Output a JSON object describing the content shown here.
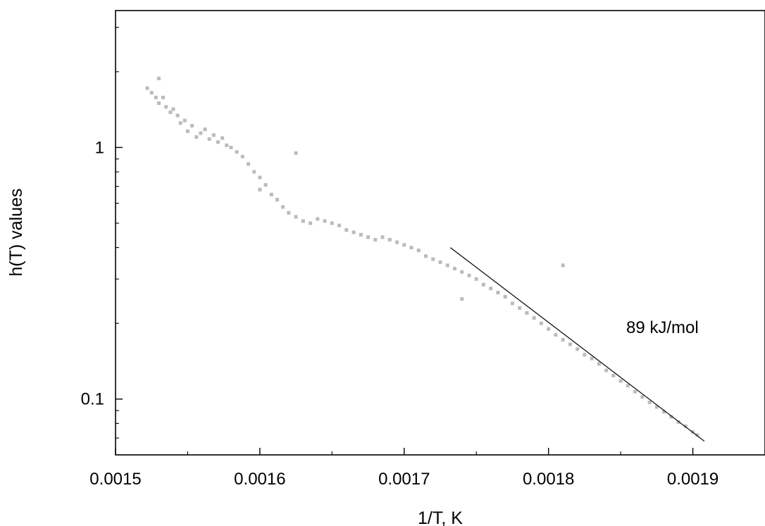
{
  "chart_data": {
    "type": "scatter",
    "title": "",
    "xlabel": "1/T, K",
    "ylabel": "h(T) values",
    "xlim": [
      0.0015,
      0.00195
    ],
    "ylim": [
      0.06,
      3.5
    ],
    "yscale": "log",
    "grid": false,
    "x_ticks": [
      {
        "value": 0.0015,
        "label": "0.0015"
      },
      {
        "value": 0.0016,
        "label": "0.0016"
      },
      {
        "value": 0.0017,
        "label": "0.0017"
      },
      {
        "value": 0.0018,
        "label": "0.0018"
      },
      {
        "value": 0.0019,
        "label": "0.0019"
      }
    ],
    "y_ticks": [
      {
        "value": 0.1,
        "label": "0.1"
      },
      {
        "value": 1,
        "label": "1"
      }
    ],
    "marker_color": "#bbbbbb",
    "fit_line_color": "#000000",
    "series": [
      {
        "marker": "square",
        "points": [
          [
            0.001522,
            1.72
          ],
          [
            0.001525,
            1.65
          ],
          [
            0.001528,
            1.58
          ],
          [
            0.00153,
            1.5
          ],
          [
            0.001533,
            1.58
          ],
          [
            0.001535,
            1.45
          ],
          [
            0.001538,
            1.38
          ],
          [
            0.00154,
            1.42
          ],
          [
            0.001543,
            1.34
          ],
          [
            0.001545,
            1.25
          ],
          [
            0.001548,
            1.28
          ],
          [
            0.00155,
            1.16
          ],
          [
            0.001553,
            1.22
          ],
          [
            0.001556,
            1.1
          ],
          [
            0.001559,
            1.14
          ],
          [
            0.001562,
            1.18
          ],
          [
            0.001565,
            1.08
          ],
          [
            0.001568,
            1.12
          ],
          [
            0.001571,
            1.05
          ],
          [
            0.001574,
            1.09
          ],
          [
            0.001577,
            1.02
          ],
          [
            0.00158,
            1.0
          ],
          [
            0.001584,
            0.96
          ],
          [
            0.001588,
            0.92
          ],
          [
            0.001592,
            0.86
          ],
          [
            0.001596,
            0.8
          ],
          [
            0.0016,
            0.76
          ],
          [
            0.001604,
            0.71
          ],
          [
            0.001608,
            0.65
          ],
          [
            0.001612,
            0.62
          ],
          [
            0.001616,
            0.58
          ],
          [
            0.00162,
            0.55
          ],
          [
            0.001625,
            0.53
          ],
          [
            0.00163,
            0.51
          ],
          [
            0.001635,
            0.5
          ],
          [
            0.00164,
            0.52
          ],
          [
            0.001645,
            0.51
          ],
          [
            0.00165,
            0.5
          ],
          [
            0.001655,
            0.49
          ],
          [
            0.00166,
            0.47
          ],
          [
            0.001665,
            0.46
          ],
          [
            0.00167,
            0.45
          ],
          [
            0.001675,
            0.44
          ],
          [
            0.00168,
            0.43
          ],
          [
            0.001685,
            0.44
          ],
          [
            0.00169,
            0.43
          ],
          [
            0.001695,
            0.42
          ],
          [
            0.0017,
            0.41
          ],
          [
            0.001705,
            0.4
          ],
          [
            0.00171,
            0.39
          ],
          [
            0.001715,
            0.37
          ],
          [
            0.00172,
            0.36
          ],
          [
            0.001725,
            0.35
          ],
          [
            0.00173,
            0.34
          ],
          [
            0.001735,
            0.33
          ],
          [
            0.00174,
            0.32
          ],
          [
            0.001745,
            0.31
          ],
          [
            0.00175,
            0.3
          ],
          [
            0.001755,
            0.285
          ],
          [
            0.00176,
            0.275
          ],
          [
            0.001765,
            0.265
          ],
          [
            0.00177,
            0.255
          ],
          [
            0.001775,
            0.24
          ],
          [
            0.00178,
            0.23
          ],
          [
            0.001785,
            0.22
          ],
          [
            0.00179,
            0.21
          ],
          [
            0.001795,
            0.2
          ],
          [
            0.0018,
            0.19
          ],
          [
            0.001805,
            0.18
          ],
          [
            0.00181,
            0.172
          ],
          [
            0.001815,
            0.165
          ],
          [
            0.00182,
            0.158
          ],
          [
            0.001825,
            0.15
          ],
          [
            0.00183,
            0.145
          ],
          [
            0.001835,
            0.138
          ],
          [
            0.00184,
            0.13
          ],
          [
            0.001845,
            0.124
          ],
          [
            0.00185,
            0.118
          ],
          [
            0.001855,
            0.113
          ],
          [
            0.00186,
            0.107
          ],
          [
            0.001865,
            0.102
          ],
          [
            0.00187,
            0.097
          ],
          [
            0.001875,
            0.093
          ],
          [
            0.00188,
            0.089
          ],
          [
            0.001885,
            0.085
          ],
          [
            0.00189,
            0.081
          ],
          [
            0.001895,
            0.078
          ],
          [
            0.0019,
            0.074
          ],
          [
            0.001903,
            0.072
          ],
          [
            0.00153,
            1.88
          ],
          [
            0.0016,
            0.68
          ],
          [
            0.001625,
            0.95
          ],
          [
            0.00174,
            0.25
          ],
          [
            0.00181,
            0.34
          ]
        ]
      },
      {
        "name": "fit",
        "type": "line",
        "points": [
          [
            0.001732,
            0.4
          ],
          [
            0.001908,
            0.068
          ]
        ]
      }
    ],
    "annotations": [
      {
        "text": "89 kJ/mol",
        "x": 0.00185,
        "y": 0.195
      }
    ]
  }
}
